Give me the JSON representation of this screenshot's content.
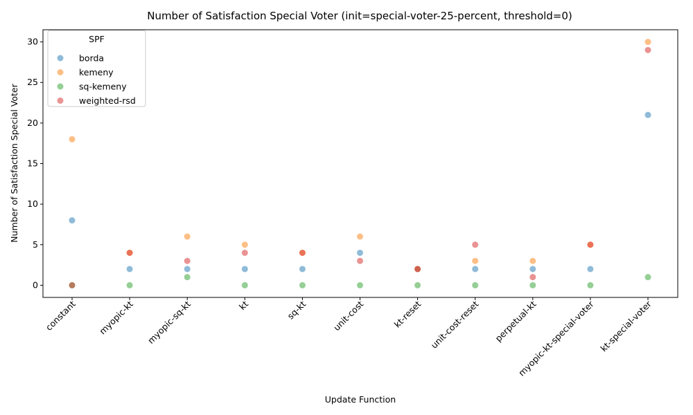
{
  "chart_data": {
    "type": "scatter",
    "title": "Number of Satisfaction Special Voter (init=special-voter-25-percent, threshold=0)",
    "xlabel": "Update Function",
    "ylabel": "Number of Satisfaction Special Voter",
    "categories": [
      "constant",
      "myopic-kt",
      "myopic-sq-kt",
      "kt",
      "sq-kt",
      "unit-cost",
      "kt-reset",
      "unit-cost-reset",
      "perpetual-kt",
      "myopic-kt-special-voter",
      "kt-special-voter"
    ],
    "ylim": [
      -1.5,
      31.5
    ],
    "yticks": [
      0,
      5,
      10,
      15,
      20,
      25,
      30
    ],
    "grid": false,
    "legend": {
      "title": "SPF",
      "placement": "top-left"
    },
    "series": [
      {
        "name": "borda",
        "color": "#1f77b4",
        "values": [
          8,
          2,
          2,
          2,
          2,
          4,
          2,
          2,
          2,
          2,
          21
        ]
      },
      {
        "name": "kemeny",
        "color": "#ff7f0e",
        "values": [
          18,
          4,
          6,
          5,
          4,
          6,
          2,
          3,
          3,
          5,
          30
        ]
      },
      {
        "name": "sq-kemeny",
        "color": "#2ca02c",
        "values": [
          0,
          0,
          1,
          0,
          0,
          0,
          0,
          0,
          0,
          0,
          1
        ]
      },
      {
        "name": "weighted-rsd",
        "color": "#d62728",
        "values": [
          0,
          4,
          3,
          4,
          4,
          3,
          2,
          5,
          1,
          5,
          29
        ]
      }
    ]
  }
}
